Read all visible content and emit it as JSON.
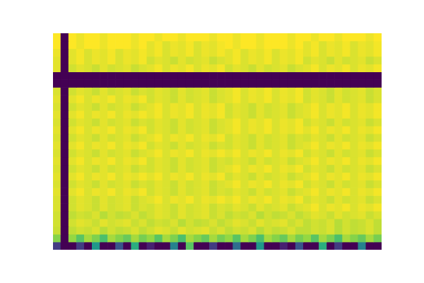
{
  "chart_data": {
    "type": "heatmap",
    "tick_labels": false,
    "grid": false,
    "cells": [
      [
        1,
        0,
        1,
        0.98,
        1,
        1,
        0.98,
        1,
        1,
        1,
        0.98,
        1,
        1,
        0.98,
        1,
        1,
        0.98,
        1,
        1,
        1,
        0.98,
        1,
        1,
        0.98,
        1,
        1,
        0.98,
        1,
        1,
        1,
        0.98,
        1,
        1,
        0.98,
        1,
        1,
        0.98,
        1,
        1,
        1,
        0.98,
        1
      ],
      [
        1,
        0,
        1,
        0.98,
        1,
        1,
        0.98,
        1,
        1,
        1,
        0.98,
        1,
        0.97,
        0.99,
        0.96,
        0.98,
        0.97,
        0.99,
        0.96,
        0.98,
        0.97,
        0.99,
        1,
        0.98,
        1,
        1,
        0.98,
        1,
        1,
        1,
        0.98,
        1,
        0.97,
        0.99,
        0.96,
        0.98,
        0.97,
        0.99,
        0.96,
        0.98,
        0.97,
        0.99
      ],
      [
        0.98,
        0,
        0.97,
        0.99,
        0.96,
        0.98,
        0.97,
        0.99,
        0.96,
        0.98,
        0.97,
        0.99,
        0.97,
        0.99,
        0.96,
        0.98,
        0.97,
        0.99,
        0.96,
        0.98,
        0.97,
        0.99,
        0.97,
        0.99,
        0.96,
        0.98,
        0.97,
        0.99,
        0.96,
        0.98,
        0.97,
        0.99,
        0.97,
        0.99,
        0.96,
        0.98,
        0.97,
        0.99,
        0.96,
        0.98,
        0.97,
        0.99
      ],
      [
        0.97,
        0,
        0.97,
        0.99,
        0.96,
        0.98,
        0.97,
        0.99,
        0.96,
        0.98,
        0.97,
        0.99,
        0.95,
        0.97,
        0.96,
        0.94,
        0.97,
        0.95,
        0.96,
        0.97,
        0.94,
        0.96,
        0.97,
        0.99,
        0.96,
        0.98,
        0.97,
        0.99,
        0.96,
        0.98,
        0.97,
        0.99,
        0.95,
        0.97,
        0.96,
        0.94,
        0.97,
        0.95,
        0.96,
        0.97,
        0.94,
        0.96
      ],
      [
        0.97,
        0,
        0.95,
        0.97,
        0.96,
        0.94,
        0.97,
        0.95,
        0.96,
        0.97,
        0.94,
        0.96,
        0.97,
        0.99,
        0.96,
        0.98,
        0.97,
        0.99,
        0.96,
        0.98,
        0.97,
        0.99,
        0.95,
        0.97,
        0.96,
        0.94,
        0.97,
        0.95,
        0.96,
        0.97,
        0.94,
        0.96,
        0.97,
        0.99,
        0.96,
        0.98,
        0.97,
        0.99,
        0.96,
        0.98,
        0.97,
        0.99
      ],
      [
        0,
        0,
        0,
        0,
        0,
        0,
        0,
        0,
        0,
        0,
        0,
        0,
        0,
        0,
        0,
        0,
        0,
        0,
        0,
        0,
        0,
        0,
        0,
        0,
        0,
        0,
        0,
        0,
        0,
        0,
        0,
        0,
        0,
        0,
        0,
        0,
        0,
        0,
        0,
        0,
        0,
        0
      ],
      [
        0,
        0,
        0,
        0,
        0,
        0,
        0,
        0,
        0,
        0,
        0,
        0,
        0,
        0,
        0,
        0,
        0,
        0,
        0,
        0,
        0,
        0,
        0,
        0,
        0,
        0,
        0,
        0,
        0,
        0,
        0,
        0,
        0,
        0,
        0,
        0,
        0,
        0,
        0,
        0,
        0,
        0
      ],
      [
        0.96,
        0,
        0.95,
        0.97,
        0.96,
        0.94,
        0.97,
        0.95,
        0.96,
        0.97,
        0.94,
        0.96,
        0.95,
        0.97,
        0.96,
        0.94,
        0.97,
        0.95,
        0.96,
        0.97,
        0.94,
        0.96,
        0.97,
        0.99,
        0.96,
        0.98,
        0.97,
        0.99,
        0.96,
        0.98,
        0.97,
        0.99,
        0.95,
        0.97,
        0.96,
        0.94,
        0.97,
        0.95,
        0.96,
        0.97,
        0.94,
        0.96
      ],
      [
        0.97,
        0,
        0.97,
        0.99,
        0.96,
        0.98,
        0.97,
        0.99,
        0.96,
        0.98,
        0.97,
        0.99,
        0.95,
        0.97,
        0.96,
        0.94,
        0.97,
        0.95,
        0.96,
        0.97,
        0.94,
        0.96,
        0.97,
        0.99,
        0.96,
        0.98,
        0.97,
        0.99,
        0.96,
        0.98,
        0.97,
        0.99,
        0.95,
        0.97,
        0.96,
        0.94,
        0.97,
        0.95,
        0.96,
        0.97,
        0.94,
        0.96
      ],
      [
        0.96,
        0,
        0.95,
        0.97,
        0.96,
        0.94,
        0.97,
        0.95,
        0.96,
        0.97,
        0.94,
        0.96,
        0.97,
        0.99,
        0.96,
        0.98,
        0.97,
        0.99,
        0.96,
        0.98,
        0.97,
        0.99,
        0.95,
        0.97,
        0.96,
        0.94,
        0.97,
        0.95,
        0.96,
        0.97,
        0.94,
        0.96,
        0.97,
        0.99,
        0.96,
        0.98,
        0.97,
        0.99,
        0.96,
        0.98,
        0.97,
        0.99
      ],
      [
        0.97,
        0,
        0.97,
        0.99,
        0.96,
        0.98,
        0.97,
        0.99,
        0.96,
        0.98,
        0.97,
        0.99,
        0.97,
        0.99,
        0.96,
        0.98,
        0.97,
        0.99,
        0.96,
        0.98,
        0.97,
        0.99,
        0.95,
        0.97,
        0.96,
        0.94,
        0.97,
        0.95,
        0.96,
        0.97,
        0.94,
        0.96,
        0.97,
        0.99,
        0.96,
        0.98,
        0.97,
        0.99,
        0.96,
        0.98,
        0.97,
        0.99
      ],
      [
        0.96,
        0,
        0.95,
        0.97,
        0.96,
        0.94,
        0.97,
        0.95,
        0.96,
        0.97,
        0.94,
        0.96,
        0.95,
        0.97,
        0.96,
        0.94,
        0.97,
        0.95,
        0.96,
        0.97,
        0.94,
        0.96,
        0.97,
        0.99,
        0.96,
        0.98,
        0.97,
        0.99,
        0.96,
        0.98,
        0.97,
        0.99,
        0.95,
        0.97,
        0.96,
        0.94,
        0.97,
        0.95,
        0.96,
        0.97,
        0.94,
        0.96
      ],
      [
        0.97,
        0,
        0.97,
        0.99,
        0.96,
        0.98,
        0.97,
        0.99,
        0.96,
        0.98,
        0.97,
        0.99,
        0.95,
        0.97,
        0.96,
        0.94,
        0.97,
        0.95,
        0.96,
        0.97,
        0.94,
        0.96,
        0.97,
        0.99,
        0.96,
        0.98,
        0.97,
        0.99,
        0.96,
        0.98,
        0.97,
        0.99,
        0.97,
        0.99,
        0.96,
        0.98,
        0.97,
        0.99,
        0.96,
        0.98,
        0.97,
        0.99
      ],
      [
        0.96,
        0,
        0.95,
        0.97,
        0.96,
        0.94,
        0.97,
        0.95,
        0.96,
        0.97,
        0.94,
        0.96,
        0.97,
        0.99,
        0.96,
        0.98,
        0.97,
        0.99,
        0.96,
        0.98,
        0.97,
        0.99,
        0.95,
        0.97,
        0.96,
        0.94,
        0.97,
        0.95,
        0.96,
        0.97,
        0.94,
        0.96,
        0.95,
        0.97,
        0.96,
        0.94,
        0.97,
        0.95,
        0.96,
        0.97,
        0.94,
        0.96
      ],
      [
        0.97,
        0,
        0.97,
        0.99,
        0.96,
        0.98,
        0.97,
        0.99,
        0.96,
        0.98,
        0.97,
        0.99,
        0.95,
        0.97,
        0.96,
        0.94,
        0.97,
        0.95,
        0.96,
        0.97,
        0.94,
        0.96,
        0.95,
        0.97,
        0.96,
        0.94,
        0.97,
        0.95,
        0.96,
        0.97,
        0.94,
        0.96,
        0.97,
        0.99,
        0.96,
        0.98,
        0.97,
        0.99,
        0.96,
        0.98,
        0.97,
        0.99
      ],
      [
        0.96,
        0,
        0.95,
        0.97,
        0.96,
        0.94,
        0.97,
        0.95,
        0.96,
        0.97,
        0.94,
        0.96,
        0.97,
        0.99,
        0.96,
        0.98,
        0.97,
        0.99,
        0.96,
        0.98,
        0.97,
        0.99,
        0.97,
        0.99,
        0.96,
        0.98,
        0.97,
        0.99,
        0.96,
        0.98,
        0.97,
        0.99,
        0.95,
        0.97,
        0.96,
        0.94,
        0.97,
        0.95,
        0.96,
        0.97,
        0.94,
        0.96
      ],
      [
        0.97,
        0,
        0.97,
        0.99,
        0.96,
        0.98,
        0.97,
        0.99,
        0.96,
        0.98,
        0.97,
        0.99,
        0.95,
        0.97,
        0.96,
        0.94,
        0.97,
        0.95,
        0.96,
        0.97,
        0.94,
        0.96,
        0.95,
        0.97,
        0.96,
        0.94,
        0.97,
        0.95,
        0.96,
        0.97,
        0.94,
        0.96,
        0.97,
        0.99,
        0.96,
        0.98,
        0.97,
        0.99,
        0.96,
        0.98,
        0.97,
        0.99
      ],
      [
        0.96,
        0,
        0.95,
        0.97,
        0.96,
        0.94,
        0.97,
        0.95,
        0.96,
        0.97,
        0.94,
        0.96,
        0.95,
        0.97,
        0.96,
        0.94,
        0.97,
        0.95,
        0.96,
        0.97,
        0.94,
        0.96,
        0.97,
        0.99,
        0.96,
        0.98,
        0.97,
        0.99,
        0.96,
        0.98,
        0.97,
        0.99,
        0.95,
        0.97,
        0.96,
        0.94,
        0.97,
        0.95,
        0.96,
        0.97,
        0.94,
        0.96
      ],
      [
        0.97,
        0,
        0.97,
        0.99,
        0.96,
        0.98,
        0.97,
        0.99,
        0.96,
        0.98,
        0.97,
        0.99,
        0.97,
        0.99,
        0.96,
        0.98,
        0.97,
        0.99,
        0.96,
        0.98,
        0.97,
        0.99,
        0.95,
        0.97,
        0.96,
        0.94,
        0.97,
        0.95,
        0.96,
        0.97,
        0.94,
        0.96,
        0.97,
        0.99,
        0.96,
        0.98,
        0.97,
        0.99,
        0.96,
        0.98,
        0.97,
        0.99
      ],
      [
        0.96,
        0,
        0.95,
        0.97,
        0.96,
        0.94,
        0.97,
        0.95,
        0.96,
        0.97,
        0.94,
        0.96,
        0.95,
        0.97,
        0.96,
        0.94,
        0.97,
        0.95,
        0.96,
        0.97,
        0.94,
        0.96,
        0.97,
        0.99,
        0.96,
        0.98,
        0.97,
        0.99,
        0.96,
        0.98,
        0.97,
        0.99,
        0.95,
        0.97,
        0.96,
        0.94,
        0.97,
        0.95,
        0.96,
        0.97,
        0.94,
        0.96
      ],
      [
        0.97,
        0,
        0.97,
        0.99,
        0.96,
        0.98,
        0.97,
        0.99,
        0.96,
        0.98,
        0.97,
        0.99,
        0.95,
        0.97,
        0.96,
        0.94,
        0.97,
        0.95,
        0.96,
        0.97,
        0.94,
        0.96,
        0.95,
        0.97,
        0.96,
        0.94,
        0.97,
        0.95,
        0.96,
        0.97,
        0.94,
        0.96,
        0.97,
        0.99,
        0.96,
        0.98,
        0.97,
        0.99,
        0.96,
        0.98,
        0.97,
        0.99
      ],
      [
        0.96,
        0,
        0.95,
        0.97,
        0.96,
        0.94,
        0.97,
        0.95,
        0.96,
        0.97,
        0.94,
        0.96,
        0.97,
        0.99,
        0.96,
        0.98,
        0.97,
        0.99,
        0.96,
        0.98,
        0.97,
        0.99,
        0.97,
        0.99,
        0.96,
        0.98,
        0.97,
        0.99,
        0.96,
        0.98,
        0.97,
        0.99,
        0.95,
        0.97,
        0.96,
        0.94,
        0.97,
        0.95,
        0.96,
        0.97,
        0.94,
        0.96
      ],
      [
        0.96,
        0,
        0.95,
        0.97,
        0.96,
        0.94,
        0.97,
        0.95,
        0.96,
        0.97,
        0.94,
        0.96,
        0.95,
        0.97,
        0.96,
        0.94,
        0.97,
        0.95,
        0.96,
        0.97,
        0.94,
        0.96,
        0.95,
        0.97,
        0.96,
        0.94,
        0.97,
        0.95,
        0.96,
        0.97,
        0.94,
        0.96,
        0.97,
        0.99,
        0.96,
        0.98,
        0.97,
        0.99,
        0.96,
        0.98,
        0.97,
        0.99
      ],
      [
        0.95,
        0,
        0.93,
        0.95,
        0.94,
        0.96,
        0.92,
        0.95,
        0.93,
        0.94,
        0.96,
        0.93,
        0.95,
        0.97,
        0.96,
        0.94,
        0.97,
        0.95,
        0.96,
        0.97,
        0.94,
        0.96,
        0.93,
        0.95,
        0.94,
        0.96,
        0.92,
        0.95,
        0.93,
        0.94,
        0.96,
        0.93,
        0.95,
        0.97,
        0.96,
        0.94,
        0.97,
        0.95,
        0.96,
        0.97,
        0.94,
        0.96
      ],
      [
        0.95,
        0,
        0.95,
        0.97,
        0.96,
        0.94,
        0.97,
        0.95,
        0.96,
        0.97,
        0.94,
        0.96,
        0.93,
        0.95,
        0.94,
        0.96,
        0.92,
        0.95,
        0.93,
        0.94,
        0.96,
        0.93,
        0.95,
        0.97,
        0.96,
        0.94,
        0.97,
        0.95,
        0.96,
        0.97,
        0.94,
        0.96,
        0.93,
        0.95,
        0.94,
        0.96,
        0.92,
        0.95,
        0.93,
        0.94,
        0.96,
        0.93
      ],
      [
        0.94,
        0,
        0.93,
        0.95,
        0.94,
        0.96,
        0.92,
        0.95,
        0.93,
        0.94,
        0.96,
        0.93,
        0.95,
        0.97,
        0.96,
        0.94,
        0.97,
        0.95,
        0.96,
        0.97,
        0.94,
        0.96,
        0.93,
        0.95,
        0.94,
        0.96,
        0.92,
        0.95,
        0.93,
        0.94,
        0.96,
        0.93,
        0.93,
        0.95,
        0.94,
        0.96,
        0.92,
        0.95,
        0.93,
        0.94,
        0.96,
        0.93
      ],
      [
        0.86,
        0,
        0.88,
        0.8,
        0.9,
        0.85,
        0.78,
        0.9,
        0.86,
        0.82,
        0.9,
        0.84,
        0.88,
        0.8,
        0.9,
        0.85,
        0.78,
        0.9,
        0.86,
        0.82,
        0.9,
        0.84,
        0.88,
        0.8,
        0.9,
        0.85,
        0.78,
        0.9,
        0.86,
        0.82,
        0.9,
        0.84,
        0.88,
        0.8,
        0.9,
        0.85,
        0.78,
        0.9,
        0.86,
        0.82,
        0.9,
        0.84
      ],
      [
        0.2,
        0,
        0,
        0.2,
        0,
        0.6,
        0,
        0,
        0.3,
        0,
        0.7,
        0,
        0.1,
        0,
        0,
        0.5,
        0,
        0.8,
        0,
        0,
        0.2,
        0,
        0,
        0.4,
        0,
        0,
        0.6,
        0,
        0,
        0.1,
        0,
        0.3,
        0,
        0,
        0.7,
        0,
        0.2,
        0,
        0,
        0.5,
        0,
        0
      ]
    ]
  }
}
